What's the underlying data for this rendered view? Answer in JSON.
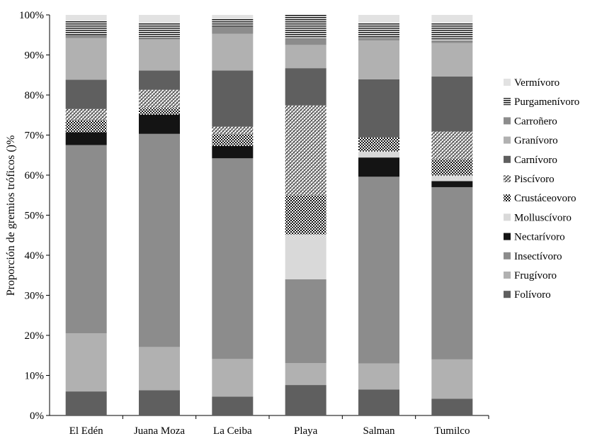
{
  "chart_data": {
    "type": "bar",
    "stacked": true,
    "ylabel": "Proporción de gremios tróficos ()%",
    "ylim": [
      0,
      100
    ],
    "yticks": [
      "0%",
      "10%",
      "20%",
      "30%",
      "40%",
      "50%",
      "60%",
      "70%",
      "80%",
      "90%",
      "100%"
    ],
    "grid": false,
    "legend_position": "right",
    "categories": [
      "El Edén",
      "Juana Moza",
      "La Ceiba",
      "Playa",
      "Salman",
      "Tumilco"
    ],
    "series": [
      {
        "name": "Folívoro",
        "pattern": "solid",
        "color": "#5f5f5f",
        "values": [
          6.0,
          6.3,
          4.7,
          7.6,
          6.5,
          4.2
        ]
      },
      {
        "name": "Frugívoro",
        "pattern": "solid",
        "color": "#b1b1b1",
        "values": [
          14.5,
          10.8,
          9.4,
          5.5,
          6.5,
          9.8
        ]
      },
      {
        "name": "Insectívoro",
        "pattern": "solid",
        "color": "#8c8c8c",
        "values": [
          47.0,
          53.2,
          50.1,
          20.9,
          46.6,
          43.0
        ]
      },
      {
        "name": "Nectarívoro",
        "pattern": "solid",
        "color": "#141414",
        "values": [
          3.2,
          4.8,
          3.1,
          0.0,
          4.8,
          1.5
        ]
      },
      {
        "name": "Molluscívoro",
        "pattern": "solid",
        "color": "#d9d9d9",
        "values": [
          0.0,
          0.0,
          0.0,
          11.2,
          1.5,
          1.4
        ]
      },
      {
        "name": "Crustáceovoro",
        "pattern": "checker",
        "color": "#1e1e1e",
        "values": [
          3.0,
          1.6,
          2.9,
          9.8,
          3.5,
          4.0
        ]
      },
      {
        "name": "Piscívoro",
        "pattern": "crosshatch",
        "color": "#3c3c3c",
        "values": [
          2.8,
          4.6,
          1.9,
          22.4,
          0.0,
          7.0
        ]
      },
      {
        "name": "Carnívoro",
        "pattern": "solid",
        "color": "#5f5f5f",
        "values": [
          7.3,
          4.8,
          14.0,
          9.3,
          14.5,
          13.7
        ]
      },
      {
        "name": "Granívoro",
        "pattern": "solid",
        "color": "#b1b1b1",
        "values": [
          10.4,
          7.9,
          9.2,
          5.8,
          9.7,
          8.4
        ]
      },
      {
        "name": "Carroñero",
        "pattern": "solid",
        "color": "#8c8c8c",
        "values": [
          0.8,
          0.0,
          1.7,
          1.6,
          0.7,
          0.6
        ]
      },
      {
        "name": "Purgamenívoro",
        "pattern": "stripes",
        "color": "#1e1e1e",
        "values": [
          3.5,
          4.0,
          2.0,
          6.0,
          3.8,
          4.5
        ]
      },
      {
        "name": "Vermívoro",
        "pattern": "solid",
        "color": "#e2e2e2",
        "values": [
          1.5,
          2.0,
          1.0,
          0.0,
          1.9,
          1.9
        ]
      }
    ],
    "legend_order": [
      "Vermívoro",
      "Purgamenívoro",
      "Carroñero",
      "Granívoro",
      "Carnívoro",
      "Piscívoro",
      "Crustáceovoro",
      "Molluscívoro",
      "Nectarívoro",
      "Insectívoro",
      "Frugívoro",
      "Folívoro"
    ]
  }
}
